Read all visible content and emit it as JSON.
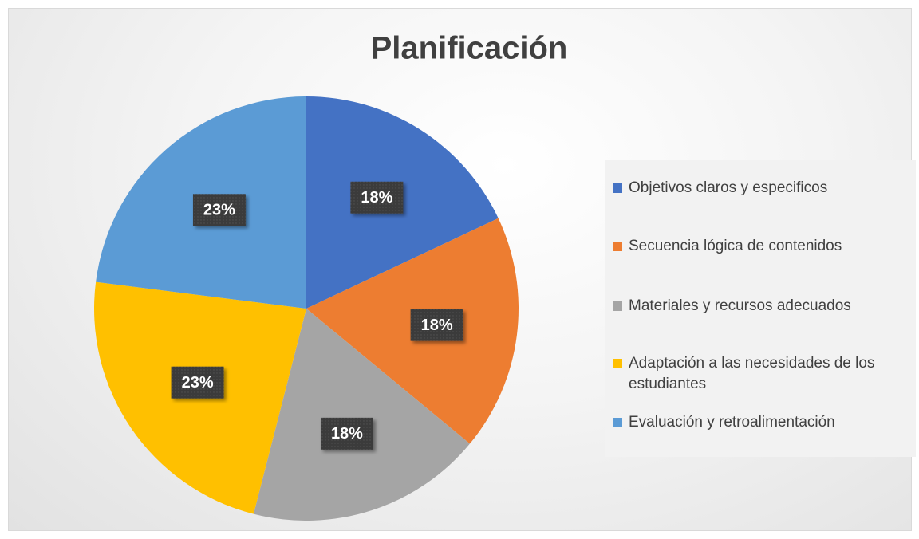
{
  "chart_data": {
    "type": "pie",
    "title": "Planificación",
    "categories": [
      "Objetivos claros y especificos",
      "Secuencia lógica de contenidos",
      "Materiales y recursos adecuados",
      "Adaptación a las necesidades de los estudiantes",
      "Evaluación y retroalimentación"
    ],
    "values": [
      18,
      18,
      18,
      23,
      23
    ],
    "value_labels": [
      "18%",
      "18%",
      "18%",
      "23%",
      "23%"
    ],
    "colors": [
      "#4472c4",
      "#ed7d31",
      "#a5a5a5",
      "#ffc000",
      "#5b9bd5"
    ],
    "legend": "right"
  }
}
